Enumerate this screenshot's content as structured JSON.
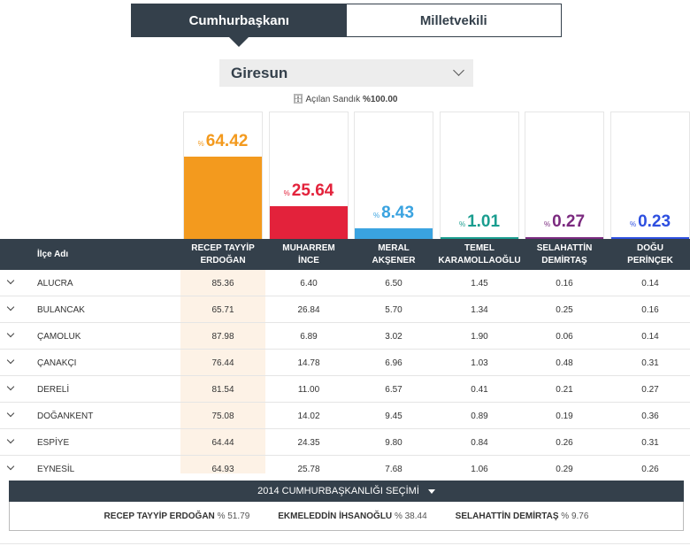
{
  "tabs": [
    {
      "label": "Cumhurbaşkanı",
      "active": true
    },
    {
      "label": "Milletvekili",
      "active": false
    }
  ],
  "province": "Giresun",
  "opened_label": "Açılan Sandık",
  "opened_value": "%100.00",
  "percent_sign": "%",
  "candidates": [
    {
      "line1": "RECEP TAYYİP",
      "line2": "ERDOĞAN",
      "value": "64.42",
      "pct": 64.42,
      "color": "#f39a1e"
    },
    {
      "line1": "MUHARREM",
      "line2": "İNCE",
      "value": "25.64",
      "pct": 25.64,
      "color": "#e3223b"
    },
    {
      "line1": "MERAL",
      "line2": "AKŞENER",
      "value": "8.43",
      "pct": 8.43,
      "color": "#3aa3e0"
    },
    {
      "line1": "TEMEL",
      "line2": "KARAMOLLAOĞLU",
      "value": "1.01",
      "pct": 1.01,
      "color": "#1a9d8f"
    },
    {
      "line1": "SELAHATTİN",
      "line2": "DEMİRTAŞ",
      "value": "0.27",
      "pct": 0.27,
      "color": "#7b2a7f"
    },
    {
      "line1": "DOĞU",
      "line2": "PERİNÇEK",
      "value": "0.23",
      "pct": 0.23,
      "color": "#2d4fe0"
    }
  ],
  "table": {
    "name_header": "İlçe Adı",
    "rows": [
      {
        "name": "ALUCRA",
        "v": [
          "85.36",
          "6.40",
          "6.50",
          "1.45",
          "0.16",
          "0.14"
        ]
      },
      {
        "name": "BULANCAK",
        "v": [
          "65.71",
          "26.84",
          "5.70",
          "1.34",
          "0.25",
          "0.16"
        ]
      },
      {
        "name": "ÇAMOLUK",
        "v": [
          "87.98",
          "6.89",
          "3.02",
          "1.90",
          "0.06",
          "0.14"
        ]
      },
      {
        "name": "ÇANAKÇI",
        "v": [
          "76.44",
          "14.78",
          "6.96",
          "1.03",
          "0.48",
          "0.31"
        ]
      },
      {
        "name": "DERELİ",
        "v": [
          "81.54",
          "11.00",
          "6.57",
          "0.41",
          "0.21",
          "0.27"
        ]
      },
      {
        "name": "DOĞANKENT",
        "v": [
          "75.08",
          "14.02",
          "9.45",
          "0.89",
          "0.19",
          "0.36"
        ]
      },
      {
        "name": "ESPİYE",
        "v": [
          "64.44",
          "24.35",
          "9.80",
          "0.84",
          "0.26",
          "0.31"
        ]
      },
      {
        "name": "EYNESİL",
        "v": [
          "64.93",
          "25.78",
          "7.68",
          "1.06",
          "0.29",
          "0.26"
        ]
      }
    ]
  },
  "history": {
    "title": "2014 CUMHURBAŞKANLIĞI SEÇİMİ",
    "results": [
      {
        "name": "RECEP TAYYİP ERDOĞAN",
        "value": "% 51.79"
      },
      {
        "name": "EKMELEDDİN İHSANOĞLU",
        "value": "% 38.44"
      },
      {
        "name": "SELAHATTİN DEMİRTAŞ",
        "value": "% 9.76"
      }
    ]
  }
}
